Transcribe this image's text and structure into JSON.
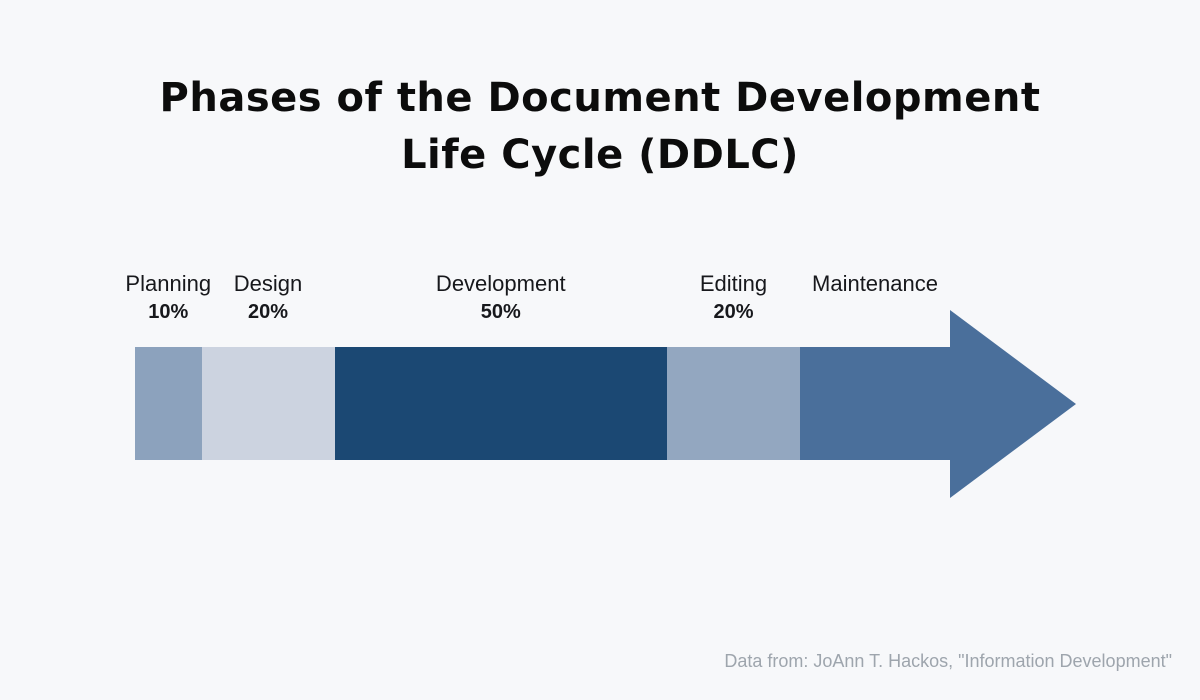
{
  "title": {
    "line1": "Phases of the Document Development",
    "line2": "Life Cycle (DDLC)"
  },
  "source_note": "Data from: JoAnn T. Hackos, \"Information Development\"",
  "colors": {
    "background": "#f7f8fa",
    "title_text": "#0c0c0c",
    "label_text": "#17181c",
    "note_text": "#9ea5ad"
  },
  "chart_data": {
    "type": "process-arrow",
    "title": "Phases of the Document Development Life Cycle (DDLC)",
    "phases": [
      {
        "name": "Planning",
        "percent": 10,
        "percent_label": "10%",
        "color": "#8ca2bd"
      },
      {
        "name": "Design",
        "percent": 20,
        "percent_label": "20%",
        "color": "#ccd3e0"
      },
      {
        "name": "Development",
        "percent": 50,
        "percent_label": "50%",
        "color": "#1b4873"
      },
      {
        "name": "Editing",
        "percent": 20,
        "percent_label": "20%",
        "color": "#93a7c0"
      },
      {
        "name": "Maintenance",
        "percent": null,
        "percent_label": "",
        "color": "#4a6f9b",
        "arrow": true
      }
    ],
    "source": "Data from: JoAnn T. Hackos, \"Information Development\""
  }
}
